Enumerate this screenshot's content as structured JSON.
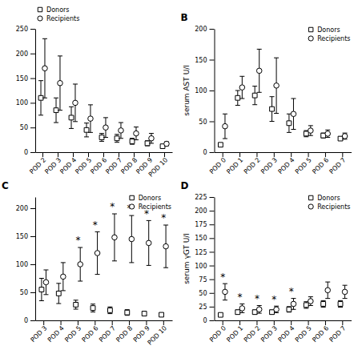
{
  "chart_data": [
    {
      "type": "errorbar",
      "categories": [
        "POD 2",
        "POD 3",
        "POD 4",
        "POD 5",
        "POD 6",
        "POD 7",
        "POD 8",
        "POD 9",
        "POD 10"
      ],
      "series": [
        {
          "name": "Donors",
          "marker": "square",
          "color": "#000000",
          "values": [
            110,
            85,
            70,
            45,
            30,
            28,
            22,
            18,
            12
          ],
          "errors": [
            35,
            25,
            22,
            14,
            8,
            8,
            6,
            5,
            3
          ]
        },
        {
          "name": "Recipients",
          "marker": "circle",
          "color": "#000000",
          "values": [
            170,
            140,
            100,
            68,
            50,
            44,
            38,
            28,
            17
          ],
          "errors": [
            60,
            55,
            38,
            28,
            20,
            16,
            13,
            10,
            4
          ]
        }
      ],
      "ylim": [
        0,
        250
      ],
      "yticks": [
        0,
        50,
        100,
        150,
        200,
        250
      ],
      "legend": "top",
      "grid": false
    },
    {
      "type": "errorbar",
      "title": "B",
      "y_label": "serum AST U/l",
      "categories": [
        "POD 0",
        "POD 1",
        "POD 2",
        "POD 3",
        "POD 4",
        "POD 5",
        "POD 6",
        "POD 7"
      ],
      "series": [
        {
          "name": "Donors",
          "marker": "square",
          "color": "#000000",
          "values": [
            12,
            88,
            92,
            70,
            47,
            30,
            27,
            22
          ],
          "errors": [
            3,
            12,
            15,
            20,
            15,
            5,
            4,
            3
          ]
        },
        {
          "name": "Recipients",
          "marker": "circle",
          "color": "#000000",
          "values": [
            42,
            105,
            132,
            108,
            62,
            35,
            30,
            26
          ],
          "errors": [
            20,
            18,
            35,
            45,
            25,
            8,
            6,
            5
          ]
        }
      ],
      "ylim": [
        0,
        200
      ],
      "yticks": [
        0,
        50,
        100,
        150,
        200
      ],
      "legend": "top-right",
      "grid": false
    },
    {
      "type": "errorbar",
      "title": "C",
      "categories": [
        "POD 3",
        "POD 4",
        "POD 5",
        "POD 6",
        "POD 7",
        "POD 8",
        "POD 9",
        "POD 10"
      ],
      "series": [
        {
          "name": "Donors",
          "marker": "square",
          "color": "#000000",
          "values": [
            55,
            48,
            28,
            22,
            18,
            14,
            12,
            10
          ],
          "errors": [
            20,
            18,
            8,
            7,
            6,
            5,
            4,
            3
          ]
        },
        {
          "name": "Recipients",
          "marker": "circle",
          "color": "#000000",
          "values": [
            68,
            78,
            100,
            120,
            148,
            145,
            138,
            132
          ],
          "errors": [
            22,
            25,
            30,
            38,
            42,
            42,
            40,
            38
          ]
        }
      ],
      "annotations": [
        {
          "text": "*",
          "x": "POD 5"
        },
        {
          "text": "*",
          "x": "POD 6"
        },
        {
          "text": "*",
          "x": "POD 7"
        },
        {
          "text": "*",
          "x": "POD 8"
        },
        {
          "text": "*",
          "x": "POD 9"
        },
        {
          "text": "*",
          "x": "POD 10"
        }
      ],
      "ylim": [
        0,
        220
      ],
      "yticks": [
        0,
        50,
        100,
        150,
        200
      ],
      "legend": "top-right",
      "grid": false
    },
    {
      "type": "errorbar",
      "title": "D",
      "y_label": "serum γGT U/l",
      "categories": [
        "POD 0",
        "POD 1",
        "POD 2",
        "POD 3",
        "POD 4",
        "POD 5",
        "POD 6",
        "POD 7"
      ],
      "series": [
        {
          "name": "Donors",
          "marker": "square",
          "color": "#000000",
          "values": [
            10,
            15,
            15,
            15,
            20,
            28,
            30,
            30
          ],
          "errors": [
            2,
            4,
            4,
            4,
            5,
            6,
            6,
            6
          ]
        },
        {
          "name": "Recipients",
          "marker": "circle",
          "color": "#000000",
          "values": [
            52,
            22,
            20,
            20,
            30,
            35,
            55,
            52
          ],
          "errors": [
            15,
            8,
            7,
            6,
            10,
            8,
            15,
            12
          ]
        }
      ],
      "annotations": [
        {
          "text": "*",
          "x": "POD 0"
        },
        {
          "text": "*",
          "x": "POD 1"
        },
        {
          "text": "*",
          "x": "POD 2"
        },
        {
          "text": "*",
          "x": "POD 3"
        },
        {
          "text": "*",
          "x": "POD 4"
        }
      ],
      "ylim": [
        0,
        225
      ],
      "yticks": [
        0,
        25,
        50,
        75,
        100,
        125,
        150,
        175,
        200,
        225
      ],
      "legend": "top-right",
      "grid": false
    }
  ]
}
